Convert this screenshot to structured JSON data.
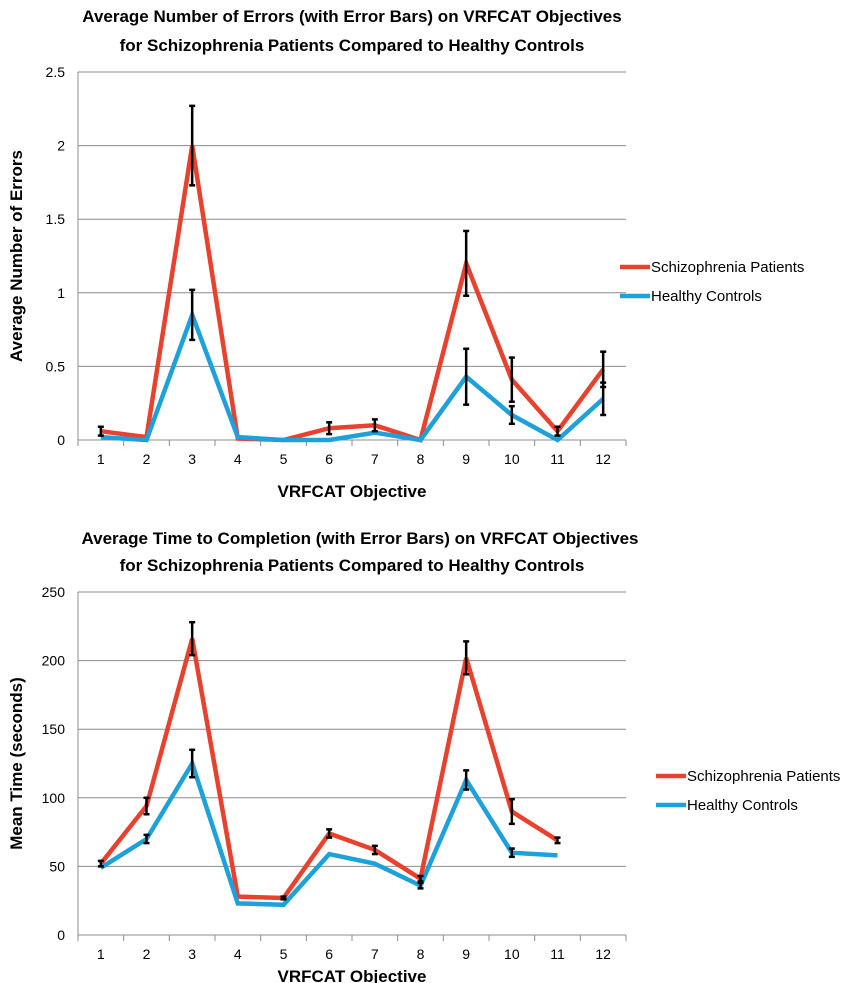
{
  "chart_data": [
    {
      "type": "line",
      "title_lines": [
        "Average Number of Errors (with Error Bars) on VRFCAT Objectives",
        "for Schizophrenia Patients Compared to Healthy Controls"
      ],
      "xlabel": "VRFCAT Objective",
      "ylabel": "Average Number of Errors",
      "categories": [
        "1",
        "2",
        "3",
        "4",
        "5",
        "6",
        "7",
        "8",
        "9",
        "10",
        "11",
        "12"
      ],
      "ylim": [
        0,
        2.5
      ],
      "yticks": [
        "0",
        "0.5",
        "1",
        "1.5",
        "2",
        "2.5"
      ],
      "grid": true,
      "legend_position": "right",
      "series": [
        {
          "name": "Schizophrenia Patients",
          "color": "#e8412d",
          "values": [
            0.06,
            0.02,
            2.0,
            0.01,
            0.0,
            0.08,
            0.1,
            0.0,
            1.2,
            0.41,
            0.06,
            0.48
          ],
          "errors": [
            0.03,
            0.0,
            0.27,
            0.0,
            0.0,
            0.04,
            0.04,
            0.0,
            0.22,
            0.15,
            0.03,
            0.12
          ]
        },
        {
          "name": "Healthy Controls",
          "color": "#1ea1da",
          "values": [
            0.02,
            0.0,
            0.85,
            0.02,
            0.0,
            0.0,
            0.05,
            0.0,
            0.43,
            0.17,
            0.0,
            0.28
          ],
          "errors": [
            0.0,
            0.0,
            0.17,
            0.0,
            0.0,
            0.0,
            0.0,
            0.0,
            0.19,
            0.06,
            0.0,
            0.11
          ]
        }
      ]
    },
    {
      "type": "line",
      "title_lines": [
        "Average Time to Completion (with Error Bars) on VRFCAT Objectives",
        "for Schizophrenia Patients Compared to Healthy Controls"
      ],
      "xlabel": "VRFCAT Objective",
      "ylabel": "Mean Time (seconds)",
      "categories": [
        "1",
        "2",
        "3",
        "4",
        "5",
        "6",
        "7",
        "8",
        "9",
        "10",
        "11",
        "12"
      ],
      "ylim": [
        0,
        250
      ],
      "yticks": [
        "0",
        "50",
        "100",
        "150",
        "200",
        "250"
      ],
      "grid": true,
      "legend_position": "right",
      "series": [
        {
          "name": "Schizophrenia Patients",
          "color": "#e8412d",
          "values": [
            52,
            94,
            216,
            28,
            27,
            74,
            62,
            41,
            202,
            90,
            69,
            null
          ],
          "errors": [
            2,
            6,
            12,
            0,
            1,
            3,
            3,
            2,
            12,
            9,
            2,
            null
          ]
        },
        {
          "name": "Healthy Controls",
          "color": "#1ea1da",
          "values": [
            49,
            70,
            125,
            23,
            22,
            59,
            52,
            36,
            113,
            60,
            58,
            null
          ],
          "errors": [
            0,
            3,
            10,
            0,
            0,
            0,
            0,
            2,
            7,
            3,
            0,
            null
          ]
        }
      ]
    }
  ]
}
